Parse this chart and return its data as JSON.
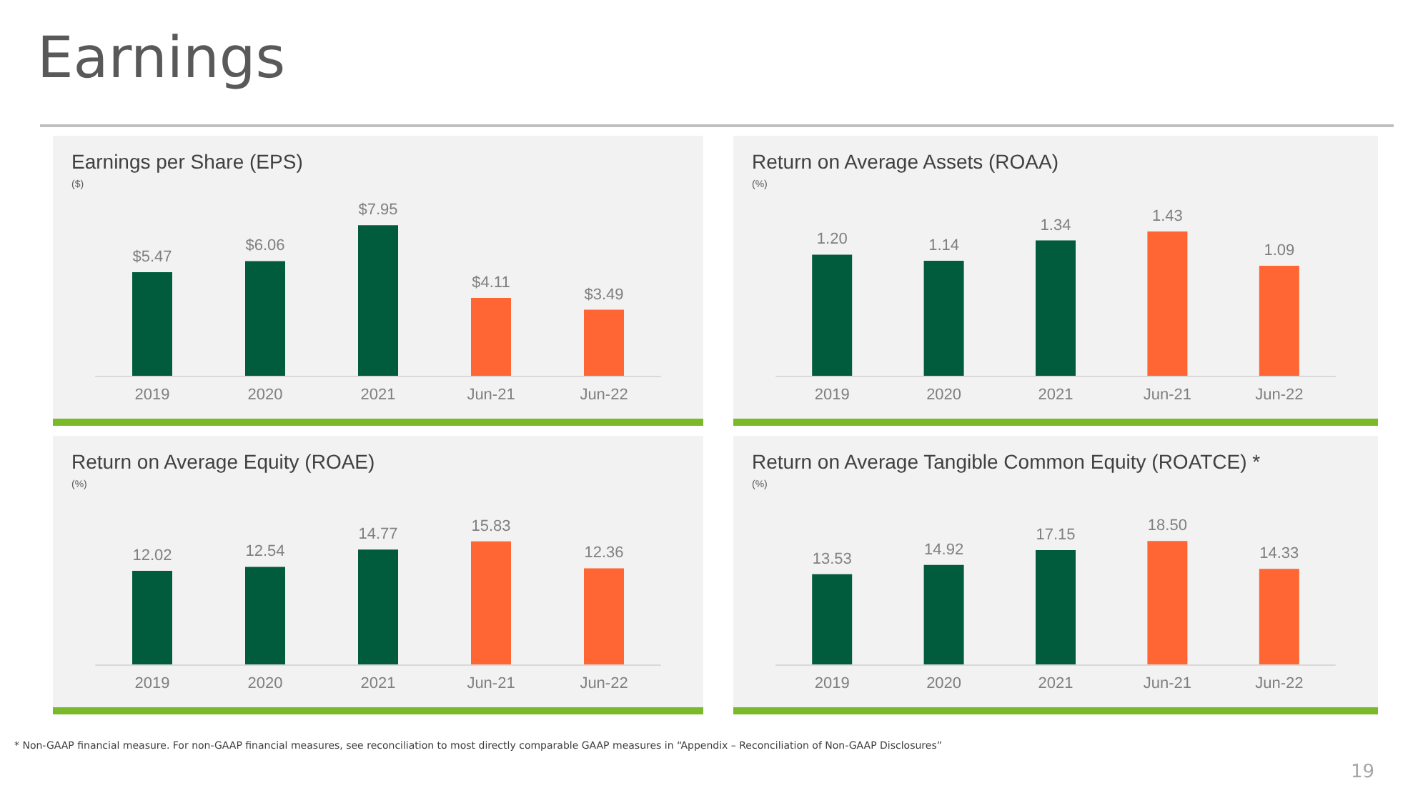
{
  "chart_data": [
    {
      "type": "bar",
      "title": "Earnings per Share (EPS)",
      "subtitle": "($)",
      "categories": [
        "2019",
        "2020",
        "2021",
        "Jun-21",
        "Jun-22"
      ],
      "values": [
        5.47,
        6.06,
        7.95,
        4.11,
        3.49
      ],
      "colors": [
        "#005c3c",
        "#005c3c",
        "#005c3c",
        "#ff6633",
        "#ff6633"
      ],
      "value_labels": [
        "$5.47",
        "$6.06",
        "$7.95",
        "$4.11",
        "$3.49"
      ],
      "annotations": [
        "Earnings"
      ]
    },
    {
      "type": "bar",
      "title": "Return on Average Assets (ROAA)",
      "subtitle": "(%)",
      "categories": [
        "2019",
        "2020",
        "2021",
        "Jun-21",
        "Jun-22"
      ],
      "values": [
        1.2,
        1.14,
        1.34,
        1.43,
        1.09
      ],
      "colors": [
        "#005c3c",
        "#005c3c",
        "#005c3c",
        "#ff6633",
        "#ff6633"
      ],
      "value_labels": [
        "1.20",
        "1.14",
        "1.34",
        "1.43",
        "1.09"
      ]
    },
    {
      "type": "bar",
      "title": "Return on Average Equity (ROAE)",
      "subtitle": "(%)",
      "categories": [
        "2019",
        "2020",
        "2021",
        "Jun-21",
        "Jun-22"
      ],
      "values": [
        12.02,
        12.54,
        14.77,
        15.83,
        12.36
      ],
      "colors": [
        "#005c3c",
        "#005c3c",
        "#005c3c",
        "#ff6633",
        "#ff6633"
      ],
      "data_labels": true
    },
    {
      "type": "bar",
      "title": "Return on Average Tangible Common Equity (ROATCE) *",
      "subtitle": "(%)",
      "categories": [
        "2019",
        "2020",
        "2021",
        "Jun-21",
        "Jun-22"
      ],
      "values": [
        13.53,
        14.92,
        17.15,
        18.5,
        14.33
      ],
      "colors": [
        "#005c3c",
        "#005c3c",
        "#005c3c",
        "#ff6633",
        "#ff6633"
      ],
      "value_labels": [
        "13.53",
        "14.92",
        "17.15",
        "18.50",
        "14.33"
      ],
      "annotations": [
        "* Non-GAAP financial measure.  For non-GAAP financial measures, see reconciliation to most directly comparable GAAP measures in “Appendix – Reconciliation of Non-GAAP Disclosures”",
        "19"
      ]
    }
  ]
}
